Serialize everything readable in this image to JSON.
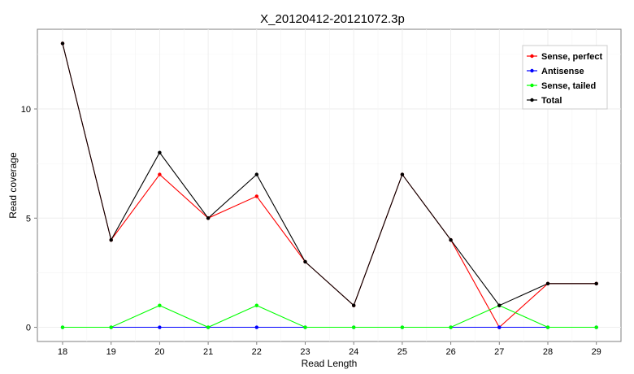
{
  "chart_data": {
    "type": "line",
    "title": "X_20120412-20121072.3p",
    "xlabel": "Read Length",
    "ylabel": "Read coverage",
    "categories": [
      "18",
      "19",
      "20",
      "21",
      "22",
      "23",
      "24",
      "25",
      "26",
      "27",
      "28",
      "29"
    ],
    "ylim": [
      -0.65,
      13.65
    ],
    "yticks": [
      0,
      5,
      10
    ],
    "grid": true,
    "legend_position": "top-right",
    "series": [
      {
        "name": "Sense, perfect",
        "color": "#ff0000",
        "values": [
          13,
          4,
          7,
          5,
          6,
          3,
          1,
          7,
          4,
          0,
          2,
          2
        ]
      },
      {
        "name": "Antisense",
        "color": "#0000ff",
        "values": [
          0,
          0,
          0,
          0,
          0,
          0,
          0,
          0,
          0,
          0,
          0,
          0
        ]
      },
      {
        "name": "Sense, tailed",
        "color": "#00ff00",
        "values": [
          0,
          0,
          1,
          0,
          1,
          0,
          0,
          0,
          0,
          1,
          0,
          0
        ]
      },
      {
        "name": "Total",
        "color": "#000000",
        "values": [
          13,
          4,
          8,
          5,
          7,
          3,
          1,
          7,
          4,
          1,
          2,
          2
        ]
      }
    ]
  }
}
